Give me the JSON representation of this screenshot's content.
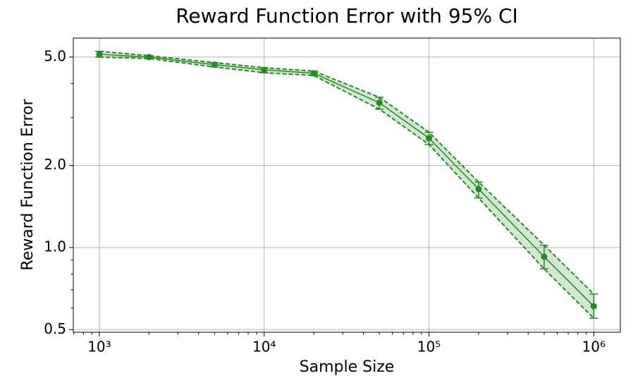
{
  "chart_data": {
    "type": "line",
    "title": "Reward Function Error with 95% CI",
    "x_label": "Sample Size",
    "y_label": "Reward Function Error",
    "x": [
      1000,
      2000,
      5000,
      10000,
      20000,
      50000,
      100000,
      200000,
      500000,
      1000000
    ],
    "values": [
      5.12,
      5.0,
      4.69,
      4.49,
      4.36,
      3.4,
      2.52,
      1.64,
      0.925,
      0.609
    ],
    "ci_lower": [
      5.0,
      4.94,
      4.6,
      4.38,
      4.28,
      3.22,
      2.39,
      1.52,
      0.835,
      0.55
    ],
    "ci_upper": [
      5.25,
      5.06,
      4.77,
      4.57,
      4.44,
      3.56,
      2.65,
      1.74,
      1.02,
      0.675
    ],
    "color": "#228b22",
    "xlog": true,
    "ylog": true,
    "grid": true,
    "xlim": [
      695,
      1450000
    ],
    "ylim": [
      0.489,
      5.87
    ],
    "xticks": [
      {
        "value": 1000,
        "label": "10³"
      },
      {
        "value": 10000,
        "label": "10⁴"
      },
      {
        "value": 100000,
        "label": "10⁵"
      },
      {
        "value": 1000000,
        "label": "10⁶"
      }
    ],
    "xminorticks": [
      700,
      800,
      900,
      2000,
      3000,
      4000,
      5000,
      6000,
      7000,
      8000,
      9000,
      20000,
      30000,
      40000,
      50000,
      60000,
      70000,
      80000,
      90000,
      200000,
      300000,
      400000,
      500000,
      600000,
      700000,
      800000,
      900000
    ],
    "yticks": [
      0.5,
      {
        "value": 1,
        "label": "1.0"
      },
      {
        "value": 2,
        "label": "2.0"
      },
      {
        "value": 5,
        "label": "5.0"
      }
    ],
    "yminorticks": [
      0.6,
      0.7,
      0.8,
      0.9,
      3,
      4
    ]
  }
}
